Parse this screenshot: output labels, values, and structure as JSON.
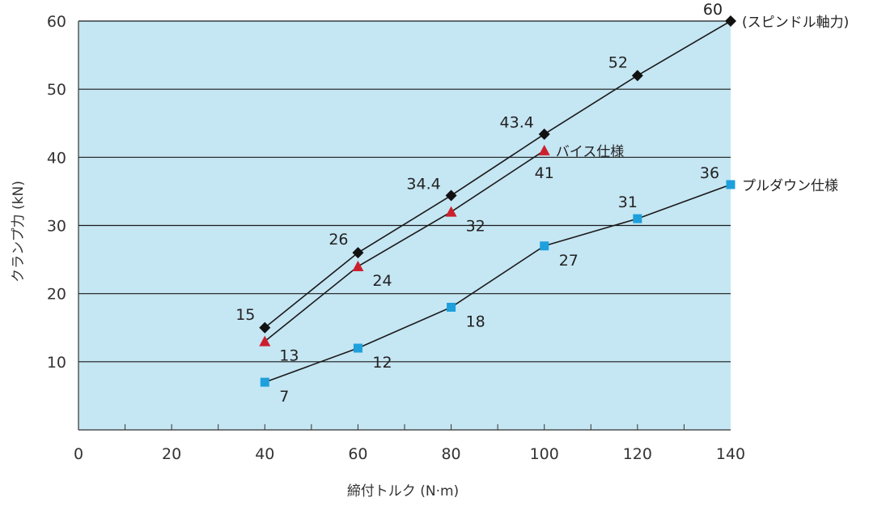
{
  "chart_data": {
    "type": "line",
    "title": "",
    "xlabel": "締付トルク (N·m)",
    "ylabel": "クランプ力 (kN)",
    "xlim": [
      0,
      140
    ],
    "ylim": [
      0,
      60
    ],
    "x_ticks": [
      "0",
      "20",
      "40",
      "60",
      "80",
      "100",
      "120",
      "140"
    ],
    "y_ticks": [
      "10",
      "20",
      "30",
      "40",
      "50",
      "60"
    ],
    "grid": "horizontal",
    "colors": {
      "plot_background": "#c5e6f3",
      "grid": "#1a1a1a",
      "spindle": "#111111",
      "vise": "#cc1f2e",
      "pulldown": "#1ea0dc"
    },
    "series": [
      {
        "name": "(スピンドル軸力)",
        "marker": "diamond",
        "x": [
          40,
          60,
          80,
          100,
          120,
          140
        ],
        "values": [
          15,
          26,
          34.4,
          43.4,
          52,
          60
        ],
        "data_labels": [
          "15",
          "26",
          "34.4",
          "43.4",
          "52",
          "60"
        ]
      },
      {
        "name": "バイス仕様",
        "marker": "triangle",
        "x": [
          40,
          60,
          80,
          100
        ],
        "values": [
          13,
          24,
          32,
          41
        ],
        "data_labels": [
          "13",
          "24",
          "32",
          "41"
        ]
      },
      {
        "name": "プルダウン仕様",
        "marker": "square",
        "x": [
          40,
          60,
          80,
          100,
          120,
          140
        ],
        "values": [
          7,
          12,
          18,
          27,
          31,
          36
        ],
        "data_labels": [
          "7",
          "12",
          "18",
          "27",
          "31",
          "36"
        ]
      }
    ]
  }
}
